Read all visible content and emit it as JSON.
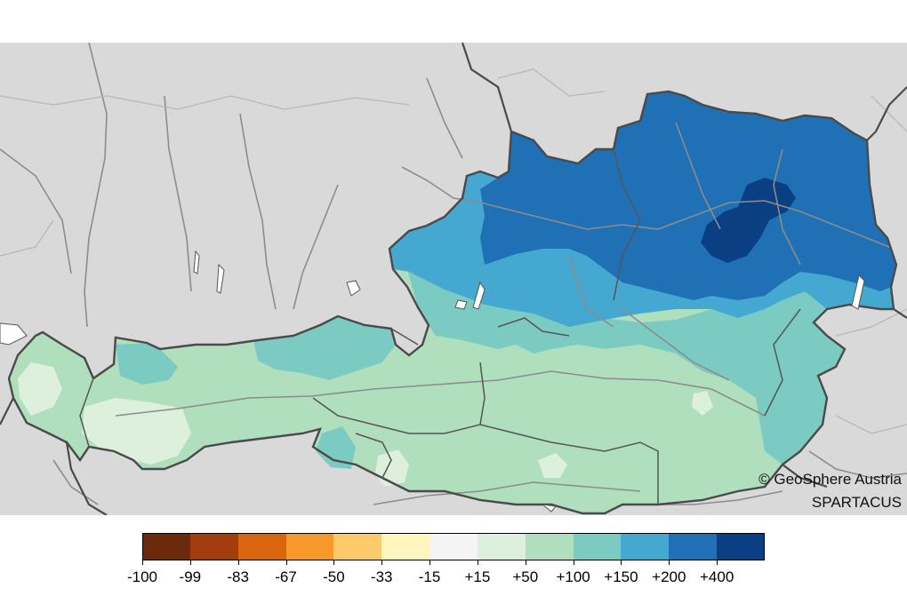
{
  "map": {
    "background_color": "#d9d9d9",
    "border_color": "#4a4a4a",
    "river_color": "#8c8c8c",
    "lake_color": "#ffffff"
  },
  "credits": {
    "line1": "© GeoSphere Austria",
    "line2": "SPARTACUS"
  },
  "legend": {
    "labels": [
      "-100",
      "-99",
      "-83",
      "-67",
      "-50",
      "-33",
      "-15",
      "+15",
      "+50",
      "+100",
      "+150",
      "+200",
      "+400"
    ],
    "colors": [
      "#6b2a0c",
      "#a33d0d",
      "#d9650f",
      "#f7982a",
      "#fec96a",
      "#fef5bf",
      "#f4f4f4",
      "#dcf0dc",
      "#b0dfbe",
      "#7ccbc3",
      "#45a8d0",
      "#1f70b5",
      "#0b3f84"
    ]
  }
}
